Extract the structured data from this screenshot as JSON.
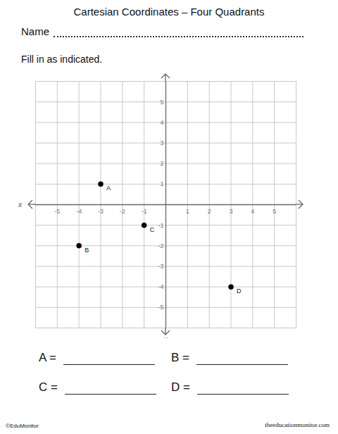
{
  "header": {
    "title": "Cartesian Coordinates – Four Quadrants",
    "name_label": "Name",
    "instruction": "Fill in as indicated."
  },
  "chart_data": {
    "type": "scatter",
    "x_label": "x",
    "y_label": "y",
    "x": [
      -3,
      -4,
      -1,
      3
    ],
    "values": [
      1,
      -2,
      -1,
      -4
    ],
    "point_labels": [
      "A",
      "B",
      "C",
      "D"
    ],
    "xlim": [
      -6,
      6
    ],
    "ylim": [
      -6,
      6
    ],
    "xticks": [
      -5,
      -4,
      -3,
      -2,
      -1,
      1,
      2,
      3,
      4,
      5
    ],
    "yticks": [
      -5,
      -4,
      -3,
      -2,
      -1,
      1,
      2,
      3,
      4,
      5
    ],
    "grid": true,
    "color": "#000000",
    "marker": "circle"
  },
  "answers": [
    "A =",
    "B =",
    "C =",
    "D ="
  ],
  "footer": {
    "left": "©EduMonitor",
    "right": "theeducationmonitor.com"
  }
}
